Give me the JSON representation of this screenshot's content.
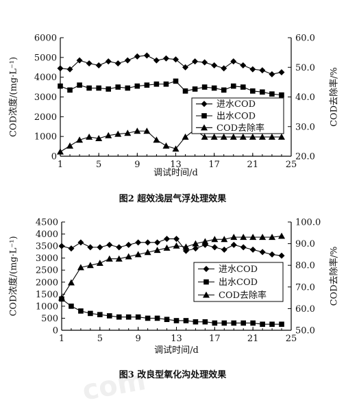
{
  "chart_data": [
    {
      "type": "line",
      "caption": "图2 超效浅层气浮处理效果",
      "xlabel": "调试时间/d",
      "ylabel": "COD浓度/(mg·L⁻¹)",
      "y2label": "COD去除率/%",
      "xlim": [
        1,
        25
      ],
      "ylim": [
        0,
        6000
      ],
      "y2lim": [
        20.0,
        60.0
      ],
      "xticks": [
        "1",
        "5",
        "9",
        "13",
        "17",
        "21",
        "25"
      ],
      "yticks": [
        "0",
        "1000",
        "2000",
        "3000",
        "4000",
        "5000",
        "6000"
      ],
      "y2ticks": [
        "20.0",
        "30.0",
        "40.0",
        "50.0",
        "60.0"
      ],
      "legend_position": "lower-right",
      "x": [
        1,
        2,
        3,
        4,
        5,
        6,
        7,
        8,
        9,
        10,
        11,
        12,
        13,
        14,
        15,
        16,
        17,
        18,
        19,
        20,
        21,
        22,
        23,
        24
      ],
      "series": [
        {
          "name": "进水COD",
          "marker": "diamond",
          "axis": "left",
          "values": [
            4450,
            4400,
            4850,
            4700,
            4600,
            4800,
            4700,
            4850,
            5050,
            5100,
            4850,
            4950,
            4900,
            4500,
            4800,
            4750,
            4600,
            4450,
            4800,
            4600,
            4400,
            4350,
            4150,
            4250
          ]
        },
        {
          "name": "出水COD",
          "marker": "square",
          "axis": "left",
          "values": [
            3550,
            3350,
            3600,
            3450,
            3450,
            3400,
            3500,
            3450,
            3550,
            3600,
            3650,
            3650,
            3800,
            3300,
            3400,
            3500,
            3450,
            3350,
            3550,
            3500,
            3300,
            3250,
            3150,
            3100
          ]
        },
        {
          "name": "COD去除率",
          "marker": "triangle",
          "axis": "right",
          "values": [
            21.5,
            23.5,
            25.5,
            26.5,
            26.0,
            27.0,
            27.5,
            27.8,
            28.5,
            28.5,
            25.5,
            23.5,
            22.5,
            26.5,
            29.0,
            26.5,
            26.5,
            26.5,
            26.5,
            26.5,
            26.5,
            26.5,
            26.5,
            26.5
          ]
        }
      ]
    },
    {
      "type": "line",
      "caption": "图3 改良型氧化沟处理效果",
      "xlabel": "调试时间/d",
      "ylabel": "COD浓度/(mg·L⁻¹)",
      "y2label": "COD去除率/%",
      "xlim": [
        1,
        25
      ],
      "ylim": [
        0,
        4500
      ],
      "y2lim": [
        50.0,
        100.0
      ],
      "xticks": [
        "1",
        "5",
        "9",
        "13",
        "17",
        "21",
        "25"
      ],
      "yticks": [
        "0",
        "500",
        "1000",
        "1500",
        "2000",
        "2500",
        "3000",
        "3500",
        "4000",
        "4500"
      ],
      "y2ticks": [
        "50.0",
        "60.0",
        "70.0",
        "80.0",
        "90.0",
        "100.0"
      ],
      "legend_position": "center-right",
      "x": [
        1,
        2,
        3,
        4,
        5,
        6,
        7,
        8,
        9,
        10,
        11,
        12,
        13,
        14,
        15,
        16,
        17,
        18,
        19,
        20,
        21,
        22,
        23,
        24
      ],
      "series": [
        {
          "name": "进水COD",
          "marker": "diamond",
          "axis": "left",
          "values": [
            3500,
            3400,
            3650,
            3450,
            3450,
            3550,
            3450,
            3550,
            3650,
            3650,
            3650,
            3800,
            3800,
            3300,
            3400,
            3550,
            3450,
            3350,
            3550,
            3450,
            3350,
            3250,
            3150,
            3100
          ]
        },
        {
          "name": "出水COD",
          "marker": "square",
          "axis": "left",
          "values": [
            1300,
            1000,
            800,
            700,
            650,
            600,
            550,
            550,
            550,
            500,
            500,
            450,
            400,
            400,
            350,
            350,
            300,
            300,
            300,
            300,
            300,
            250,
            250,
            250
          ]
        },
        {
          "name": "COD去除率",
          "marker": "triangle",
          "axis": "right",
          "values": [
            65.0,
            72.0,
            79.0,
            80.0,
            81.0,
            83.0,
            83.0,
            84.0,
            85.0,
            86.0,
            87.0,
            88.0,
            89.0,
            88.5,
            90.0,
            91.0,
            92.0,
            92.0,
            93.0,
            93.0,
            93.0,
            93.0,
            93.0,
            93.5
          ]
        }
      ]
    }
  ],
  "watermark": "com"
}
